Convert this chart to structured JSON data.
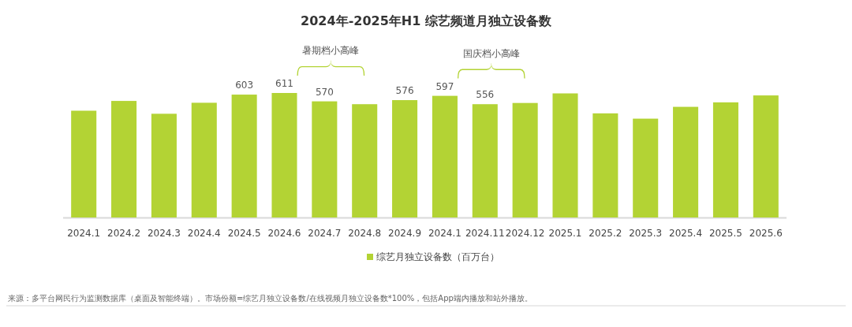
{
  "chart_data": {
    "type": "bar",
    "title": "2024年-2025年H1 综艺频道月独立设备数",
    "categories": [
      "2024.1",
      "2024.2",
      "2024.3",
      "2024.4",
      "2024.5",
      "2024.6",
      "2024.7",
      "2024.8",
      "2024.9",
      "2024.1",
      "2024.11",
      "2024.12",
      "2025.1",
      "2025.2",
      "2025.3",
      "2025.4",
      "2025.5",
      "2025.6"
    ],
    "series": [
      {
        "name": "综艺月独立设备数（百万台）",
        "color": "#b3d334",
        "values": [
          524,
          572,
          509,
          563,
          603,
          611,
          570,
          556,
          576,
          597,
          556,
          562,
          609,
          511,
          485,
          543,
          565,
          599
        ],
        "value_labels": [
          null,
          null,
          null,
          null,
          "603",
          "611",
          "570",
          null,
          "576",
          "597",
          "556",
          null,
          null,
          null,
          null,
          null,
          null,
          null
        ]
      }
    ],
    "legend": "bottom",
    "annotations": [
      "暑期档小高峰",
      "国庆档小高峰",
      "来源：多平台网民行为监测数据库（桌面及智能终端）。市场份额=综艺月独立设备数/在线视频月独立设备数*100%，包括App端内播放和站外播放。"
    ]
  }
}
